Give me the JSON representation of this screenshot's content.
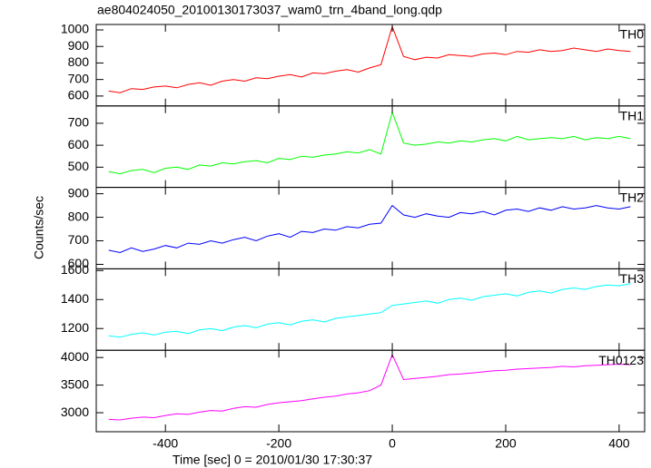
{
  "chart_data": [
    {
      "type": "line",
      "title": "ae804024050_20100130173037_wam0_trn_4band_long.qdp",
      "x": [
        -500,
        -480,
        -460,
        -440,
        -420,
        -400,
        -380,
        -360,
        -340,
        -320,
        -300,
        -280,
        -260,
        -240,
        -220,
        -200,
        -180,
        -160,
        -140,
        -120,
        -100,
        -80,
        -60,
        -40,
        -20,
        0,
        20,
        40,
        60,
        80,
        100,
        120,
        140,
        160,
        180,
        200,
        220,
        240,
        260,
        280,
        300,
        320,
        340,
        360,
        380,
        400,
        420
      ],
      "series": [
        {
          "name": "TH0",
          "color": "#ff0000",
          "values": [
            630,
            620,
            645,
            640,
            655,
            660,
            650,
            670,
            680,
            665,
            690,
            700,
            690,
            710,
            705,
            720,
            730,
            715,
            740,
            735,
            750,
            760,
            745,
            770,
            790,
            1020,
            840,
            820,
            835,
            830,
            850,
            845,
            840,
            855,
            860,
            850,
            870,
            865,
            880,
            870,
            875,
            890,
            880,
            870,
            885,
            875,
            870
          ]
        }
      ],
      "xlim": [
        -522,
        445
      ],
      "ylim": [
        540,
        1033
      ],
      "yticks": [
        600,
        700,
        800,
        900,
        1000
      ]
    },
    {
      "type": "line",
      "x": [
        -500,
        -480,
        -460,
        -440,
        -420,
        -400,
        -380,
        -360,
        -340,
        -320,
        -300,
        -280,
        -260,
        -240,
        -220,
        -200,
        -180,
        -160,
        -140,
        -120,
        -100,
        -80,
        -60,
        -40,
        -20,
        0,
        20,
        40,
        60,
        80,
        100,
        120,
        140,
        160,
        180,
        200,
        220,
        240,
        260,
        280,
        300,
        320,
        340,
        360,
        380,
        400,
        420
      ],
      "series": [
        {
          "name": "TH1",
          "color": "#00ff00",
          "values": [
            480,
            470,
            485,
            490,
            475,
            495,
            500,
            490,
            510,
            505,
            520,
            515,
            525,
            530,
            520,
            540,
            535,
            550,
            545,
            555,
            560,
            570,
            565,
            580,
            560,
            750,
            610,
            600,
            605,
            615,
            610,
            620,
            615,
            625,
            630,
            620,
            640,
            625,
            630,
            635,
            630,
            640,
            625,
            635,
            630,
            640,
            630
          ]
        }
      ],
      "xlim": [
        -522,
        445
      ],
      "ylim": [
        408,
        779
      ],
      "yticks": [
        500,
        600,
        700
      ]
    },
    {
      "type": "line",
      "ylabel": "Counts/sec",
      "x": [
        -500,
        -480,
        -460,
        -440,
        -420,
        -400,
        -380,
        -360,
        -340,
        -320,
        -300,
        -280,
        -260,
        -240,
        -220,
        -200,
        -180,
        -160,
        -140,
        -120,
        -100,
        -80,
        -60,
        -40,
        -20,
        0,
        20,
        40,
        60,
        80,
        100,
        120,
        140,
        160,
        180,
        200,
        220,
        240,
        260,
        280,
        300,
        320,
        340,
        360,
        380,
        400,
        420
      ],
      "series": [
        {
          "name": "TH2",
          "color": "#0000ff",
          "values": [
            660,
            650,
            670,
            655,
            665,
            680,
            670,
            690,
            685,
            700,
            690,
            705,
            715,
            700,
            720,
            730,
            715,
            740,
            735,
            750,
            745,
            760,
            755,
            770,
            775,
            850,
            810,
            800,
            815,
            805,
            800,
            820,
            815,
            825,
            810,
            830,
            835,
            825,
            840,
            830,
            845,
            835,
            840,
            850,
            840,
            835,
            845
          ]
        }
      ],
      "xlim": [
        -522,
        445
      ],
      "ylim": [
        581,
        927
      ],
      "yticks": [
        600,
        700,
        800,
        900
      ]
    },
    {
      "type": "line",
      "x": [
        -500,
        -480,
        -460,
        -440,
        -420,
        -400,
        -380,
        -360,
        -340,
        -320,
        -300,
        -280,
        -260,
        -240,
        -220,
        -200,
        -180,
        -160,
        -140,
        -120,
        -100,
        -80,
        -60,
        -40,
        -20,
        0,
        20,
        40,
        60,
        80,
        100,
        120,
        140,
        160,
        180,
        200,
        220,
        240,
        260,
        280,
        300,
        320,
        340,
        360,
        380,
        400,
        420
      ],
      "series": [
        {
          "name": "TH3",
          "color": "#00ffff",
          "values": [
            1150,
            1140,
            1160,
            1170,
            1155,
            1175,
            1180,
            1165,
            1190,
            1200,
            1185,
            1210,
            1220,
            1205,
            1230,
            1240,
            1225,
            1250,
            1260,
            1245,
            1270,
            1280,
            1290,
            1300,
            1310,
            1360,
            1370,
            1380,
            1390,
            1375,
            1400,
            1410,
            1395,
            1420,
            1430,
            1440,
            1425,
            1450,
            1460,
            1445,
            1470,
            1480,
            1470,
            1490,
            1500,
            1495,
            1510
          ]
        }
      ],
      "xlim": [
        -522,
        445
      ],
      "ylim": [
        1050,
        1612
      ],
      "yticks": [
        1200,
        1400,
        1600
      ]
    },
    {
      "type": "line",
      "xlabel": "Time [sec] 0 = 2010/01/30 17:30:37",
      "x": [
        -500,
        -480,
        -460,
        -440,
        -420,
        -400,
        -380,
        -360,
        -340,
        -320,
        -300,
        -280,
        -260,
        -240,
        -220,
        -200,
        -180,
        -160,
        -140,
        -120,
        -100,
        -80,
        -60,
        -40,
        -20,
        0,
        20,
        40,
        60,
        80,
        100,
        120,
        140,
        160,
        180,
        200,
        220,
        240,
        260,
        280,
        300,
        320,
        340,
        360,
        380,
        400,
        420
      ],
      "series": [
        {
          "name": "TH0123",
          "color": "#ff00ff",
          "values": [
            2880,
            2870,
            2900,
            2920,
            2910,
            2950,
            2980,
            2970,
            3010,
            3040,
            3030,
            3080,
            3110,
            3100,
            3150,
            3180,
            3200,
            3220,
            3250,
            3280,
            3300,
            3340,
            3360,
            3400,
            3500,
            4050,
            3600,
            3620,
            3640,
            3660,
            3690,
            3700,
            3720,
            3740,
            3760,
            3770,
            3790,
            3800,
            3810,
            3820,
            3840,
            3830,
            3850,
            3860,
            3870,
            3880,
            3870
          ]
        }
      ],
      "xlim": [
        -522,
        445
      ],
      "ylim": [
        2656,
        4131
      ],
      "yticks": [
        3000,
        3500,
        4000
      ],
      "xticks": [
        -400,
        -200,
        0,
        200,
        400
      ]
    }
  ]
}
